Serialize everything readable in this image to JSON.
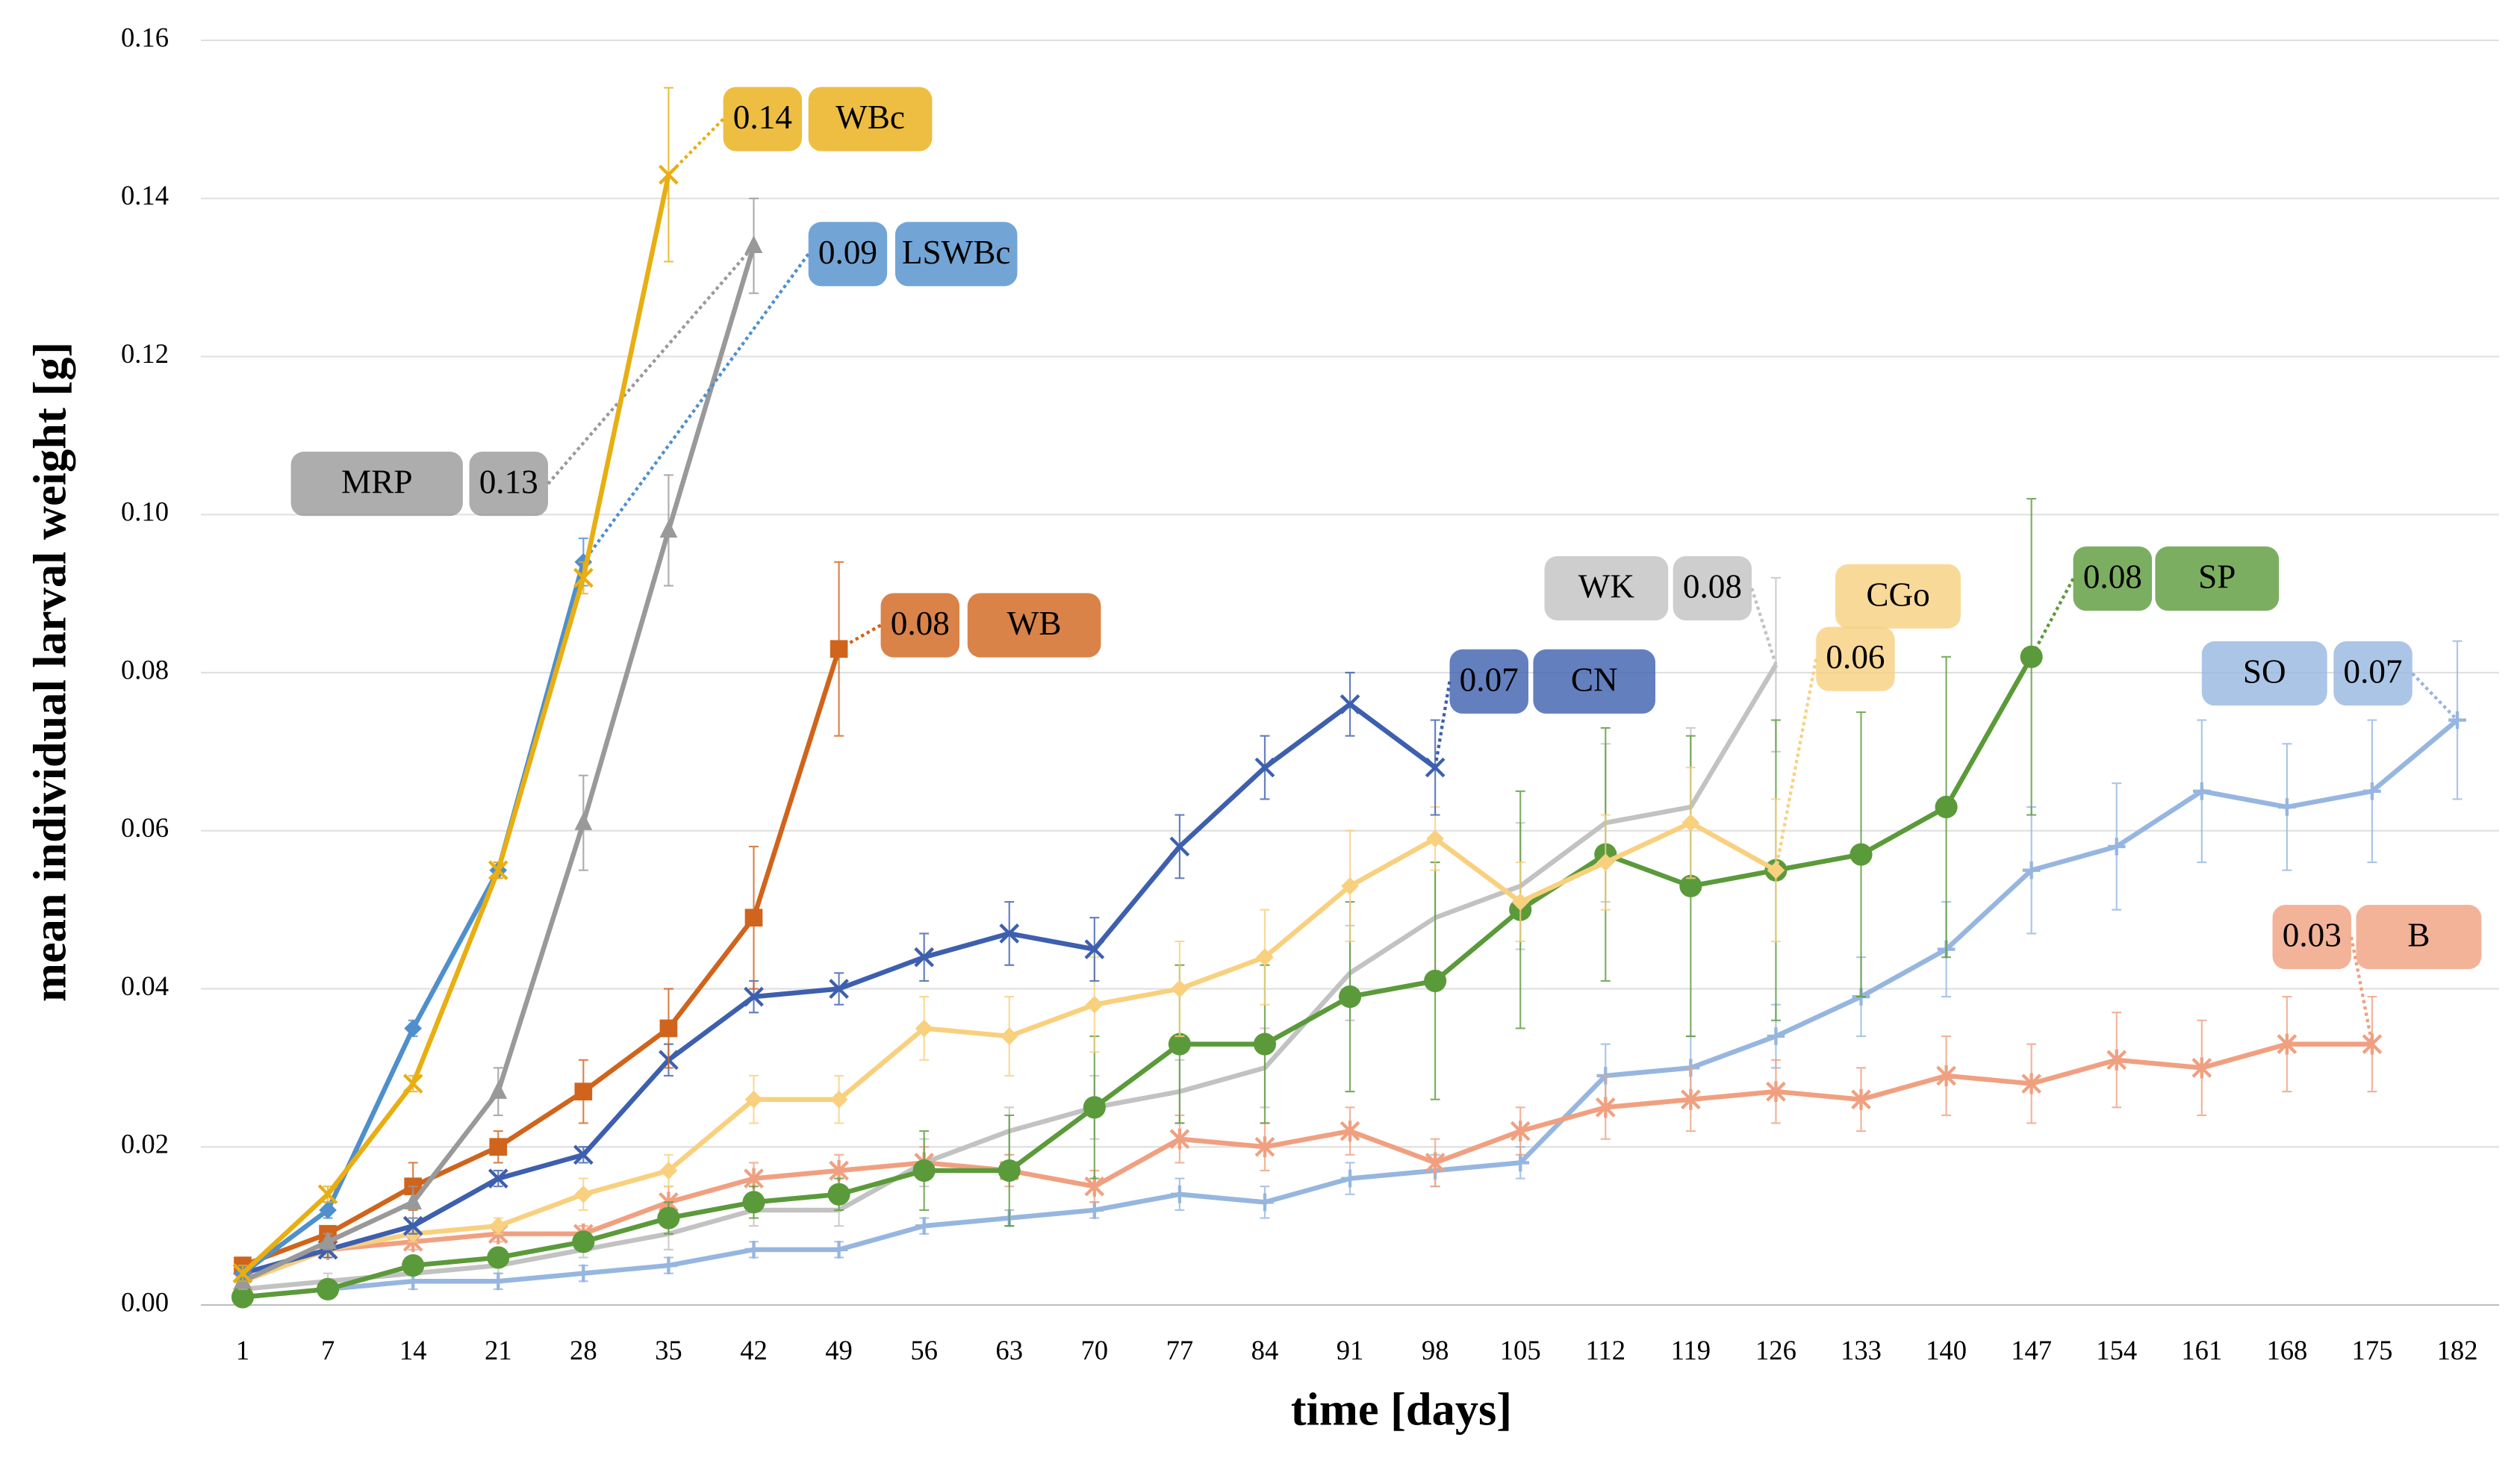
{
  "chart_data": {
    "type": "line",
    "x_label": "time [days]",
    "y_label": "mean individual larval weight [g]",
    "categories": [
      1,
      7,
      14,
      21,
      28,
      35,
      42,
      49,
      56,
      63,
      70,
      77,
      84,
      91,
      98,
      105,
      112,
      119,
      126,
      133,
      140,
      147,
      154,
      161,
      168,
      175,
      182
    ],
    "ylim": [
      0,
      0.16
    ],
    "yticks": [
      {
        "value": 0,
        "label": "0.00"
      },
      0.02,
      0.04,
      0.06,
      0.08,
      {
        "value": 0.1,
        "label": "0.10"
      },
      0.12,
      0.14,
      0.16
    ],
    "grid": true,
    "series": [
      {
        "name": "WBc",
        "color": "#e8ae12",
        "marker": "x",
        "end_label": 0.14,
        "values": [
          0.004,
          0.014,
          0.028,
          0.055,
          0.092,
          0.143,
          null,
          null,
          null,
          null,
          null,
          null,
          null,
          null,
          null,
          null,
          null,
          null,
          null,
          null,
          null,
          null,
          null,
          null,
          null,
          null,
          null
        ],
        "errors": [
          0.001,
          0.001,
          0.001,
          0.001,
          0.002,
          0.011,
          null,
          null,
          null,
          null,
          null,
          null,
          null,
          null,
          null,
          null,
          null,
          null,
          null,
          null,
          null,
          null,
          null,
          null,
          null,
          null,
          null
        ]
      },
      {
        "name": "LSWBc",
        "color": "#4f8fcc",
        "marker": "diamond",
        "end_label": 0.09,
        "values": [
          0.004,
          0.012,
          0.035,
          0.055,
          0.094,
          null,
          null,
          null,
          null,
          null,
          null,
          null,
          null,
          null,
          null,
          null,
          null,
          null,
          null,
          null,
          null,
          null,
          null,
          null,
          null,
          null,
          null
        ],
        "errors": [
          0.001,
          0.001,
          0.001,
          0.001,
          0.003,
          null,
          null,
          null,
          null,
          null,
          null,
          null,
          null,
          null,
          null,
          null,
          null,
          null,
          null,
          null,
          null,
          null,
          null,
          null,
          null,
          null,
          null
        ]
      },
      {
        "name": "MRP",
        "color": "#999999",
        "marker": "triangle",
        "end_label": 0.13,
        "values": [
          0.003,
          0.008,
          0.013,
          0.027,
          0.061,
          0.098,
          0.134,
          null,
          null,
          null,
          null,
          null,
          null,
          null,
          null,
          null,
          null,
          null,
          null,
          null,
          null,
          null,
          null,
          null,
          null,
          null,
          null
        ],
        "errors": [
          0.001,
          0.001,
          0.002,
          0.003,
          0.006,
          0.007,
          0.006,
          null,
          null,
          null,
          null,
          null,
          null,
          null,
          null,
          null,
          null,
          null,
          null,
          null,
          null,
          null,
          null,
          null,
          null,
          null,
          null
        ]
      },
      {
        "name": "WB",
        "color": "#d0641c",
        "marker": "square",
        "end_label": 0.08,
        "values": [
          0.005,
          0.009,
          0.015,
          0.02,
          0.027,
          0.035,
          0.049,
          0.083,
          null,
          null,
          null,
          null,
          null,
          null,
          null,
          null,
          null,
          null,
          null,
          null,
          null,
          null,
          null,
          null,
          null,
          null,
          null
        ],
        "errors": [
          0.001,
          0.001,
          0.003,
          0.002,
          0.004,
          0.005,
          0.009,
          0.011,
          null,
          null,
          null,
          null,
          null,
          null,
          null,
          null,
          null,
          null,
          null,
          null,
          null,
          null,
          null,
          null,
          null,
          null,
          null
        ]
      },
      {
        "name": "CN",
        "color": "#3d5fae",
        "marker": "x",
        "end_label": 0.07,
        "values": [
          0.004,
          0.007,
          0.01,
          0.016,
          0.019,
          0.031,
          0.039,
          0.04,
          0.044,
          0.047,
          0.045,
          0.058,
          0.068,
          0.076,
          0.068,
          null,
          null,
          null,
          null,
          null,
          null,
          null,
          null,
          null,
          null,
          null,
          null
        ],
        "errors": [
          0.001,
          0.001,
          0.001,
          0.001,
          0.001,
          0.002,
          0.002,
          0.002,
          0.003,
          0.004,
          0.004,
          0.004,
          0.004,
          0.004,
          0.006,
          null,
          null,
          null,
          null,
          null,
          null,
          null,
          null,
          null,
          null,
          null,
          null
        ]
      },
      {
        "name": "CGo",
        "color": "#f8d07e",
        "marker": "diamond",
        "end_label": 0.06,
        "values": [
          0.003,
          0.007,
          0.009,
          0.01,
          0.014,
          0.017,
          0.026,
          0.026,
          0.035,
          0.034,
          0.038,
          0.04,
          0.044,
          0.053,
          0.059,
          0.051,
          0.056,
          0.061,
          0.055,
          null,
          null,
          null,
          null,
          null,
          null,
          null,
          null
        ],
        "errors": [
          0.001,
          0.001,
          0.001,
          0.001,
          0.002,
          0.002,
          0.003,
          0.003,
          0.004,
          0.005,
          0.006,
          0.006,
          0.006,
          0.007,
          0.004,
          0.005,
          0.006,
          0.007,
          0.009,
          null,
          null,
          null,
          null,
          null,
          null,
          null,
          null
        ]
      },
      {
        "name": "WK",
        "color": "#c2c2c2",
        "marker": "none",
        "end_label": 0.08,
        "values": [
          0.002,
          0.003,
          0.004,
          0.005,
          0.007,
          0.009,
          0.012,
          0.012,
          0.018,
          0.022,
          0.025,
          0.027,
          0.03,
          0.042,
          0.049,
          0.053,
          0.061,
          0.063,
          0.081,
          null,
          null,
          null,
          null,
          null,
          null,
          null,
          null
        ],
        "errors": [
          0.001,
          0.001,
          0.001,
          0.001,
          0.001,
          0.002,
          0.002,
          0.002,
          0.003,
          0.003,
          0.004,
          0.004,
          0.005,
          0.006,
          0.007,
          0.008,
          0.01,
          0.01,
          0.011,
          null,
          null,
          null,
          null,
          null,
          null,
          null,
          null
        ]
      },
      {
        "name": "SP",
        "color": "#5b9a3a",
        "marker": "circle",
        "end_label": 0.08,
        "values": [
          0.001,
          0.002,
          0.005,
          0.006,
          0.008,
          0.011,
          0.013,
          0.014,
          0.017,
          0.017,
          0.025,
          0.033,
          0.033,
          0.039,
          0.041,
          0.05,
          0.057,
          0.053,
          0.055,
          0.057,
          0.063,
          0.082,
          null,
          null,
          null,
          null,
          null
        ],
        "errors": [
          0.001,
          0.001,
          0.001,
          0.001,
          0.001,
          0.002,
          0.002,
          0.002,
          0.005,
          0.007,
          0.009,
          0.01,
          0.01,
          0.012,
          0.015,
          0.015,
          0.016,
          0.019,
          0.019,
          0.018,
          0.019,
          0.02,
          null,
          null,
          null,
          null,
          null
        ]
      },
      {
        "name": "SO",
        "color": "#96b6e0",
        "marker": "plus",
        "end_label": 0.07,
        "values": [
          0.001,
          0.002,
          0.003,
          0.003,
          0.004,
          0.005,
          0.007,
          0.007,
          0.01,
          0.011,
          0.012,
          0.014,
          0.013,
          0.016,
          0.017,
          0.018,
          0.029,
          0.03,
          0.034,
          0.039,
          0.045,
          0.055,
          0.058,
          0.065,
          0.063,
          0.065,
          0.074
        ],
        "errors": [
          0.001,
          0.001,
          0.001,
          0.001,
          0.001,
          0.001,
          0.001,
          0.001,
          0.001,
          0.001,
          0.001,
          0.002,
          0.002,
          0.002,
          0.002,
          0.002,
          0.004,
          0.004,
          0.004,
          0.005,
          0.006,
          0.008,
          0.008,
          0.009,
          0.008,
          0.009,
          0.01
        ]
      },
      {
        "name": "B",
        "color": "#f0a080",
        "marker": "star",
        "end_label": 0.03,
        "values": [
          0.003,
          0.007,
          0.008,
          0.009,
          0.009,
          0.013,
          0.016,
          0.017,
          0.018,
          0.017,
          0.015,
          0.021,
          0.02,
          0.022,
          0.018,
          0.022,
          0.025,
          0.026,
          0.027,
          0.026,
          0.029,
          0.028,
          0.031,
          0.03,
          0.033,
          0.033,
          null
        ],
        "errors": [
          0.001,
          0.001,
          0.001,
          0.001,
          0.001,
          0.002,
          0.002,
          0.002,
          0.002,
          0.002,
          0.002,
          0.003,
          0.003,
          0.003,
          0.003,
          0.003,
          0.004,
          0.004,
          0.004,
          0.004,
          0.005,
          0.005,
          0.006,
          0.006,
          0.006,
          0.006,
          null
        ]
      }
    ]
  }
}
